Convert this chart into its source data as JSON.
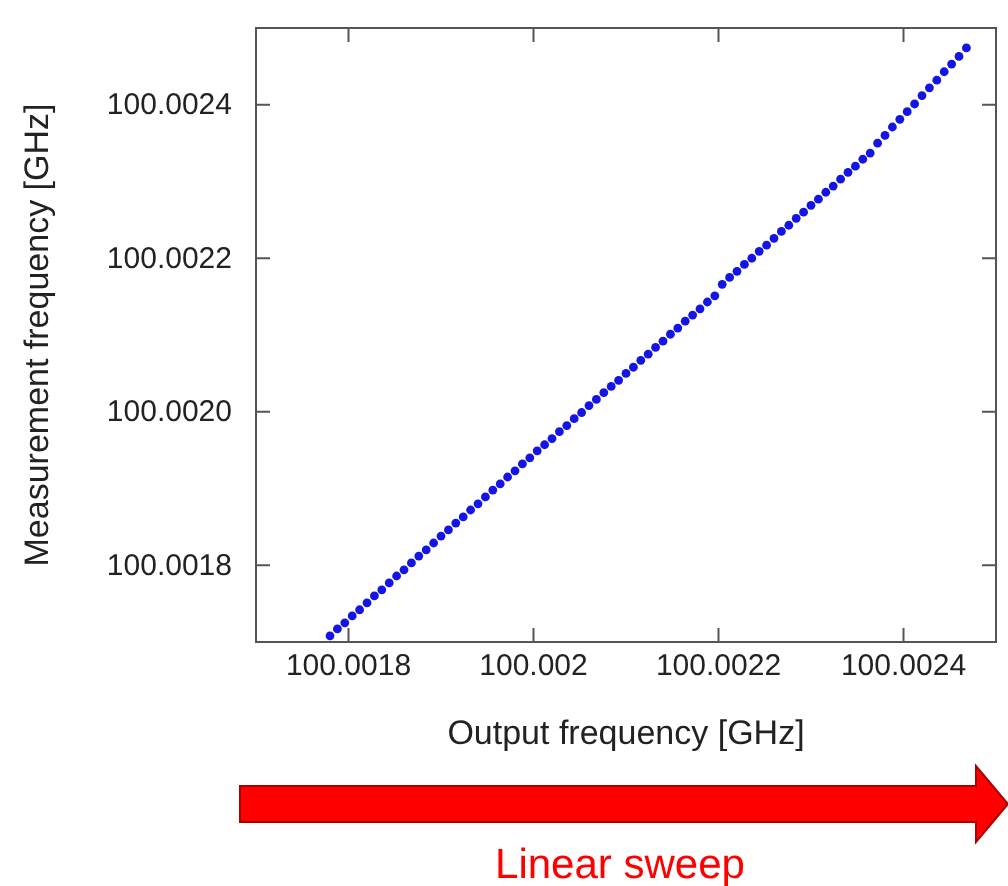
{
  "chart_data": {
    "type": "scatter",
    "xlabel": "Output frequency [GHz]",
    "ylabel": "Measurement frequency [GHz]",
    "marker": "circle",
    "grid": false,
    "xlim": [
      100.0017,
      100.0025
    ],
    "xticks": [
      100.0018,
      100.002,
      100.0022,
      100.0024
    ],
    "ylim": [
      100.0017,
      100.0025
    ],
    "yticks": [
      {
        "value": 100.0018,
        "label": "100.0018"
      },
      {
        "value": 100.002,
        "label": "100.0020"
      },
      {
        "value": 100.0022,
        "label": "100.0022"
      },
      {
        "value": 100.0024,
        "label": "100.0024"
      }
    ],
    "annotations": [
      "Linear sweep"
    ],
    "series": [
      {
        "color": "#1414e6",
        "x": [
          100.00178,
          100.001788,
          100.001796,
          100.001804,
          100.001812,
          100.00182,
          100.001828,
          100.001836,
          100.001844,
          100.001852,
          100.00186,
          100.001868,
          100.001876,
          100.001884,
          100.001892,
          100.0019,
          100.001908,
          100.001916,
          100.001924,
          100.001932,
          100.00194,
          100.001948,
          100.001956,
          100.001964,
          100.001972,
          100.00198,
          100.001988,
          100.001996,
          100.002004,
          100.002012,
          100.00202,
          100.002028,
          100.002036,
          100.002044,
          100.002052,
          100.00206,
          100.002068,
          100.002076,
          100.002084,
          100.002092,
          100.0021,
          100.002108,
          100.002116,
          100.002124,
          100.002132,
          100.00214,
          100.002148,
          100.002156,
          100.002164,
          100.002172,
          100.00218,
          100.002188,
          100.002196,
          100.002204,
          100.002212,
          100.00222,
          100.002228,
          100.002236,
          100.002244,
          100.002252,
          100.00226,
          100.002268,
          100.002276,
          100.002284,
          100.002292,
          100.0023,
          100.002308,
          100.002316,
          100.002324,
          100.002332,
          100.00234,
          100.002348,
          100.002356,
          100.002364,
          100.002372,
          100.00238,
          100.002388,
          100.002396,
          100.002404,
          100.002412,
          100.00242,
          100.002428,
          100.002436,
          100.002444,
          100.002452,
          100.00246,
          100.002468
        ],
        "values": [
          100.001708,
          100.001717,
          100.001725,
          100.001734,
          100.001742,
          100.001751,
          100.00176,
          100.001768,
          100.001777,
          100.001786,
          100.001794,
          100.001803,
          100.001812,
          100.00182,
          100.001829,
          100.001838,
          100.001846,
          100.001855,
          100.001863,
          100.001872,
          100.00188,
          100.001889,
          100.001898,
          100.001906,
          100.001915,
          100.001923,
          100.001932,
          100.00194,
          100.001949,
          100.001957,
          100.001965,
          100.001974,
          100.001982,
          100.001991,
          100.001999,
          100.002008,
          100.002016,
          100.002025,
          100.002033,
          100.002041,
          100.00205,
          100.002058,
          100.002067,
          100.002075,
          100.002084,
          100.002092,
          100.002101,
          100.002109,
          100.002118,
          100.002126,
          100.002134,
          100.002143,
          100.002151,
          100.002166,
          100.002175,
          100.002183,
          100.002192,
          100.0022,
          100.002209,
          100.002217,
          100.002226,
          100.002235,
          100.002243,
          100.002252,
          100.00226,
          100.002269,
          100.002277,
          100.002286,
          100.002294,
          100.002303,
          100.002312,
          100.00232,
          100.002329,
          100.002337,
          100.00235,
          100.00236,
          100.002371,
          100.002381,
          100.002391,
          100.002401,
          100.002412,
          100.002422,
          100.002432,
          100.002443,
          100.002453,
          100.002463,
          100.002474
        ]
      }
    ]
  }
}
